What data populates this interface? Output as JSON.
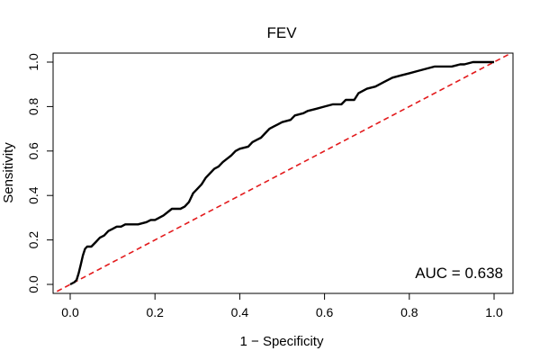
{
  "chart_data": {
    "type": "line",
    "title": "FEV",
    "xlabel": "1 − Specificity",
    "ylabel": "Sensitivity",
    "xlim": [
      0,
      1
    ],
    "ylim": [
      0,
      1
    ],
    "x_ticks": [
      0.0,
      0.2,
      0.4,
      0.6,
      0.8,
      1.0
    ],
    "y_ticks": [
      0.0,
      0.2,
      0.4,
      0.6,
      0.8,
      1.0
    ],
    "x_tick_labels": [
      "0.0",
      "0.2",
      "0.4",
      "0.6",
      "0.8",
      "1.0"
    ],
    "y_tick_labels": [
      "0.0",
      "0.2",
      "0.4",
      "0.6",
      "0.8",
      "1.0"
    ],
    "annotation": "AUC = 0.638",
    "grid": false,
    "series": [
      {
        "role": "roc-curve",
        "color": "#000000",
        "style": "solid",
        "x": [
          0.0,
          0.01,
          0.015,
          0.02,
          0.025,
          0.03,
          0.035,
          0.04,
          0.05,
          0.06,
          0.07,
          0.08,
          0.09,
          0.1,
          0.11,
          0.12,
          0.13,
          0.14,
          0.16,
          0.18,
          0.19,
          0.2,
          0.21,
          0.22,
          0.24,
          0.26,
          0.27,
          0.28,
          0.29,
          0.3,
          0.31,
          0.32,
          0.33,
          0.34,
          0.35,
          0.36,
          0.38,
          0.39,
          0.4,
          0.42,
          0.43,
          0.44,
          0.45,
          0.46,
          0.47,
          0.48,
          0.49,
          0.5,
          0.52,
          0.53,
          0.55,
          0.56,
          0.58,
          0.6,
          0.62,
          0.64,
          0.65,
          0.67,
          0.68,
          0.7,
          0.72,
          0.74,
          0.76,
          0.78,
          0.8,
          0.82,
          0.84,
          0.86,
          0.88,
          0.9,
          0.92,
          0.93,
          0.95,
          0.97,
          1.0
        ],
        "y": [
          0.0,
          0.01,
          0.02,
          0.05,
          0.09,
          0.13,
          0.16,
          0.17,
          0.17,
          0.19,
          0.21,
          0.22,
          0.24,
          0.25,
          0.26,
          0.26,
          0.27,
          0.27,
          0.27,
          0.28,
          0.29,
          0.29,
          0.3,
          0.31,
          0.34,
          0.34,
          0.35,
          0.37,
          0.41,
          0.43,
          0.45,
          0.48,
          0.5,
          0.52,
          0.53,
          0.55,
          0.58,
          0.6,
          0.61,
          0.62,
          0.64,
          0.65,
          0.66,
          0.68,
          0.7,
          0.71,
          0.72,
          0.73,
          0.74,
          0.76,
          0.77,
          0.78,
          0.79,
          0.8,
          0.81,
          0.81,
          0.83,
          0.83,
          0.86,
          0.88,
          0.89,
          0.91,
          0.93,
          0.94,
          0.95,
          0.96,
          0.97,
          0.98,
          0.98,
          0.98,
          0.99,
          0.99,
          1.0,
          1.0,
          1.0
        ]
      },
      {
        "role": "reference-diagonal",
        "color": "#e31a1c",
        "style": "dashed",
        "x": [
          0,
          1
        ],
        "y": [
          0,
          1
        ]
      }
    ]
  }
}
